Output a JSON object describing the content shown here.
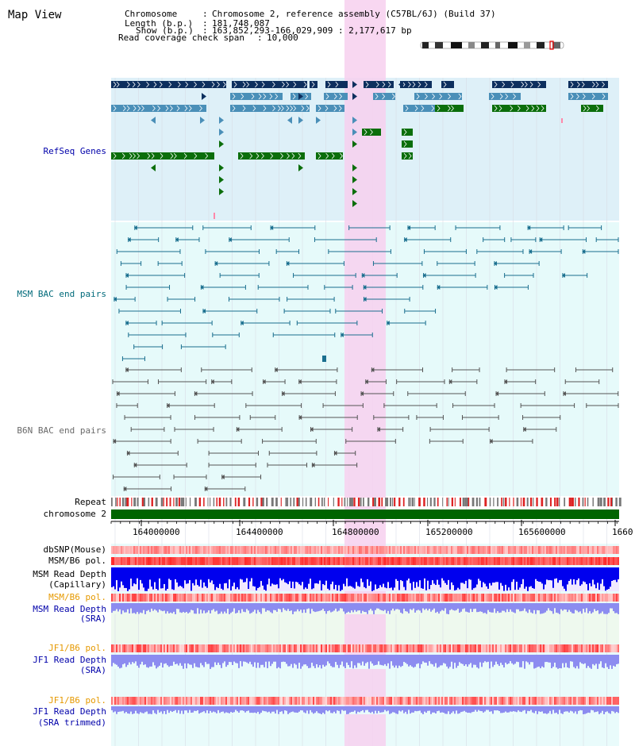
{
  "title": "Map View",
  "info": {
    "chromosome_label": "Chromosome",
    "chromosome_value": "Chromosome 2, reference assembly (C57BL/6J) (Build 37)",
    "length_label": "Length (b.p.)",
    "length_value": "181,748,087",
    "show_label": "Show (b.p.)",
    "show_value": "163,852,293-166,029,909 : 2,177,617 bp",
    "coverage_label": "Read coverage check span",
    "coverage_value": "10,000"
  },
  "tracks": {
    "refseq": "RefSeq Genes",
    "msm_bac": "MSM BAC end pairs",
    "b6n_bac": "B6N BAC end pairs",
    "repeat": "Repeat",
    "chromosome": "chromosome 2",
    "dbsnp": "dbSNP(Mouse)",
    "msm_pol_1": "MSM/B6 pol.",
    "msm_depth_cap_1": "MSM Read Depth",
    "msm_depth_cap_2": "(Capillary)",
    "msm_pol_2": "MSM/B6 pol.",
    "msm_depth_sra_1": "MSM Read Depth",
    "msm_depth_sra_2": "(SRA)",
    "jf1_pol_1": "JF1/B6 pol.",
    "jf1_depth_sra_1": "JF1 Read Depth",
    "jf1_depth_sra_2": "(SRA)",
    "jf1_pol_2": "JF1/B6 pol.",
    "jf1_depth_trim_1": "JF1 Read Depth",
    "jf1_depth_trim_2": "(SRA trimmed)"
  },
  "axis": {
    "ticks": [
      "164000000",
      "164400000",
      "164800000",
      "165200000",
      "165600000",
      "1660"
    ]
  },
  "colors": {
    "gene_dark": "#0d2f5e",
    "gene_mid": "#4a8fb8",
    "gene_green": "#0b6e0b",
    "msm_line": "#1a6f8f",
    "b6n_line": "#555555",
    "highlight": "#f7d0ee",
    "refseq_bg": "#def0f8",
    "bac_bg": "#e6fafa",
    "chrom_bar": "#006400",
    "depth_blue": "#0000ee",
    "depth_light": "#8c8cf0",
    "pol_red": "#ee3333",
    "label_blue": "#0000aa",
    "label_orange": "#e69900",
    "label_teal": "#006a7a"
  }
}
